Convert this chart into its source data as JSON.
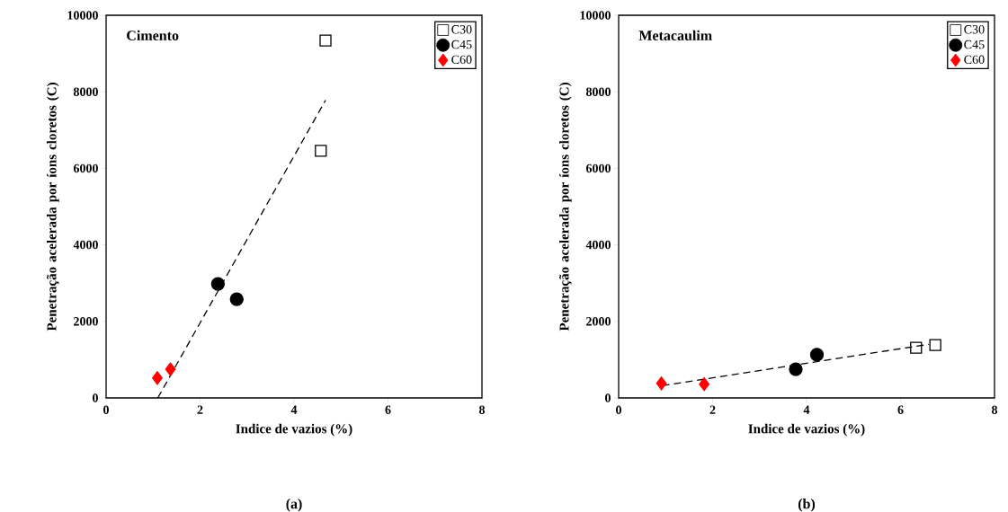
{
  "chart_data": [
    {
      "type": "scatter",
      "title": "Cimento",
      "xlabel": "Indice de vazios (%)",
      "ylabel": "Penetração acelerada por íons cloretos (C)",
      "xlim": [
        0,
        8
      ],
      "ylim": [
        0,
        10000
      ],
      "xticks": [
        0,
        2,
        4,
        6,
        8
      ],
      "yticks": [
        0,
        2000,
        4000,
        6000,
        8000,
        10000
      ],
      "legend": "top right",
      "annotations": [
        "(a)"
      ],
      "series": [
        {
          "name": "C30",
          "color": "#000000",
          "marker": "square",
          "x": [
            4.67,
            4.57
          ],
          "values": [
            9340,
            6460
          ]
        },
        {
          "name": "C45",
          "color": "#000000",
          "marker": "circle",
          "x": [
            2.38,
            2.78
          ],
          "values": [
            2980,
            2580
          ]
        },
        {
          "name": "C60",
          "color": "#ff0000",
          "marker": "diamond",
          "x": [
            1.09,
            1.37
          ],
          "values": [
            520,
            750
          ]
        },
        {
          "type": "line",
          "color": "#000000",
          "line_style": "dashed",
          "marker": "none",
          "x": [
            1.1,
            4.67
          ],
          "values": [
            0,
            7780
          ]
        }
      ]
    },
    {
      "type": "scatter",
      "title": "Metacaulim",
      "xlabel": "Indice de vazios (%)",
      "ylabel": "Penetração acelerada por íons cloretos (C)",
      "xlim": [
        0,
        8
      ],
      "ylim": [
        0,
        10000
      ],
      "xticks": [
        0,
        2,
        4,
        6,
        8
      ],
      "yticks": [
        0,
        2000,
        4000,
        6000,
        8000,
        10000
      ],
      "legend": "top right",
      "annotations": [
        "(b)"
      ],
      "series": [
        {
          "name": "C30",
          "color": "#000000",
          "marker": "square",
          "x": [
            6.33,
            6.74
          ],
          "values": [
            1310,
            1380
          ]
        },
        {
          "name": "C45",
          "color": "#000000",
          "marker": "circle",
          "x": [
            3.77,
            4.22
          ],
          "values": [
            750,
            1130
          ]
        },
        {
          "name": "C60",
          "color": "#ff0000",
          "marker": "diamond",
          "x": [
            0.91,
            1.82
          ],
          "values": [
            380,
            360
          ]
        },
        {
          "type": "line",
          "color": "#000000",
          "line_style": "dashed",
          "marker": "none",
          "x": [
            0.93,
            6.6
          ],
          "values": [
            320,
            1400
          ]
        }
      ]
    }
  ]
}
